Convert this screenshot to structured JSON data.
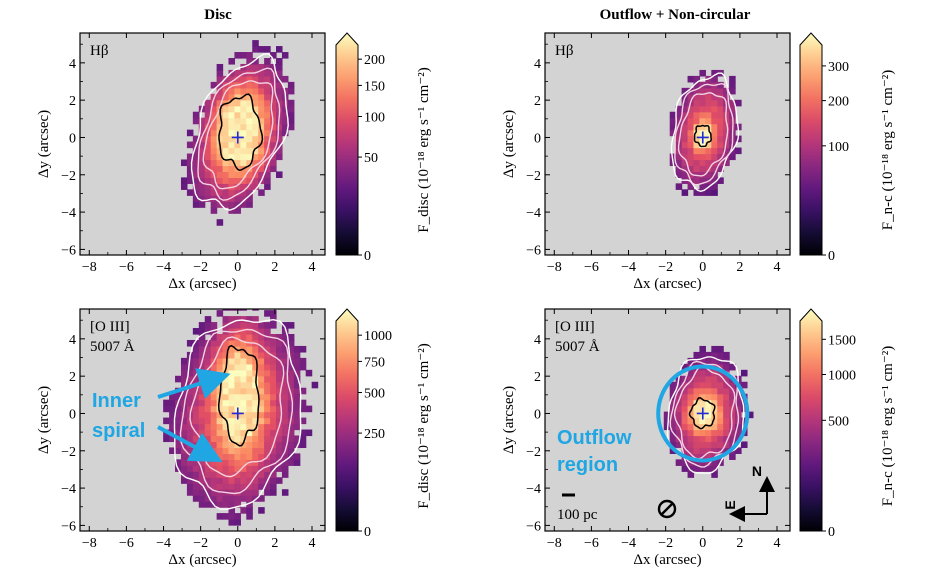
{
  "columns": [
    "Disc",
    "Outflow + Non-circular"
  ],
  "chart_data": [
    {
      "type": "heatmap",
      "id": "disc-hbeta",
      "column_title": "Disc",
      "panel_label": "Hβ",
      "xlabel": "Δx (arcsec)",
      "ylabel": "Δy (arcsec)",
      "xlim": [
        -8.5,
        4.7
      ],
      "ylim": [
        -6.3,
        5.6
      ],
      "xticks": [
        -8,
        -6,
        -4,
        -2,
        0,
        2,
        4
      ],
      "yticks": [
        -6,
        -4,
        -2,
        0,
        2,
        4
      ],
      "colorbar": {
        "label": "F_disc (10⁻¹⁸ erg s⁻¹ cm⁻²)",
        "ticks": [
          0,
          50,
          100,
          150,
          200
        ],
        "vmax": 230,
        "stretch": "sqrt"
      },
      "blob": {
        "cx": 0.1,
        "cy": 0.2,
        "rx": 2.6,
        "ry": 4.8,
        "tilt_deg": -20,
        "peak_x": 0.1,
        "peak_y": 0.3,
        "core_rx": 1.4,
        "core_ry": 2.4,
        "peak_frac": 0.98
      },
      "contours_white": [
        0.2,
        0.38,
        0.55
      ],
      "contours_black": [
        0.82
      ],
      "center_marker": [
        0,
        0
      ]
    },
    {
      "type": "heatmap",
      "id": "nc-hbeta",
      "column_title": "Outflow + Non-circular",
      "panel_label": "Hβ",
      "xlabel": "Δx (arcsec)",
      "ylabel": "Δy (arcsec)",
      "xlim": [
        -8.5,
        4.7
      ],
      "ylim": [
        -6.3,
        5.6
      ],
      "xticks": [
        -8,
        -6,
        -4,
        -2,
        0,
        2,
        4
      ],
      "yticks": [
        -6,
        -4,
        -2,
        0,
        2,
        4
      ],
      "colorbar": {
        "label": "F_n-c (10⁻¹⁸ erg s⁻¹ cm⁻²)",
        "ticks": [
          0,
          100,
          200,
          300
        ],
        "vmax": 370,
        "stretch": "sqrt"
      },
      "blob": {
        "cx": 0.1,
        "cy": 0.3,
        "rx": 1.9,
        "ry": 3.4,
        "tilt_deg": -10,
        "peak_x": 0.0,
        "peak_y": 0.1,
        "core_rx": 0.55,
        "core_ry": 0.7,
        "peak_frac": 0.96
      },
      "contours_white": [
        0.15,
        0.3,
        0.5
      ],
      "contours_black": [
        0.82
      ],
      "center_marker": [
        0,
        0
      ]
    },
    {
      "type": "heatmap",
      "id": "disc-oiii",
      "column_title": "Disc",
      "panel_label": "[O III]",
      "panel_label_line2": "5007 Å",
      "xlabel": "Δx (arcsec)",
      "ylabel": "Δy (arcsec)",
      "xlim": [
        -8.5,
        4.7
      ],
      "ylim": [
        -6.3,
        5.6
      ],
      "xticks": [
        -8,
        -6,
        -4,
        -2,
        0,
        2,
        4
      ],
      "yticks": [
        -6,
        -4,
        -2,
        0,
        2,
        4
      ],
      "colorbar": {
        "label": "F_disc (10⁻¹⁸ erg s⁻¹ cm⁻²)",
        "ticks": [
          0,
          250,
          500,
          750,
          1000
        ],
        "vmax": 1150,
        "stretch": "sqrt"
      },
      "blob": {
        "cx": 0.0,
        "cy": 0.0,
        "rx": 3.8,
        "ry": 5.8,
        "tilt_deg": -10,
        "peak_x": 0.1,
        "peak_y": 1.0,
        "core_rx": 1.3,
        "core_ry": 3.2,
        "peak_frac": 0.98
      },
      "contours_white": [
        0.18,
        0.35,
        0.55
      ],
      "contours_black": [
        0.82
      ],
      "center_marker": [
        0,
        0
      ],
      "annotation": {
        "text_line1": "Inner",
        "text_line2": "spiral",
        "arrow_targets": [
          [
            -0.8,
            2.0
          ],
          [
            -1.2,
            -2.4
          ]
        ]
      }
    },
    {
      "type": "heatmap",
      "id": "nc-oiii",
      "column_title": "Outflow + Non-circular",
      "panel_label": "[O III]",
      "panel_label_line2": "5007 Å",
      "xlabel": "Δx (arcsec)",
      "ylabel": "Δy (arcsec)",
      "xlim": [
        -8.5,
        4.7
      ],
      "ylim": [
        -6.3,
        5.6
      ],
      "xticks": [
        -8,
        -6,
        -4,
        -2,
        0,
        2,
        4
      ],
      "yticks": [
        -6,
        -4,
        -2,
        0,
        2,
        4
      ],
      "colorbar": {
        "label": "F_n-c (10⁻¹⁸ erg s⁻¹ cm⁻²)",
        "ticks": [
          0,
          500,
          1000,
          1500
        ],
        "vmax": 1800,
        "stretch": "sqrt"
      },
      "blob": {
        "cx": 0.2,
        "cy": 0.0,
        "rx": 2.2,
        "ry": 3.4,
        "tilt_deg": -5,
        "peak_x": 0.0,
        "peak_y": 0.0,
        "core_rx": 0.8,
        "core_ry": 0.95,
        "peak_frac": 0.98
      },
      "contours_white": [
        0.12,
        0.28,
        0.45
      ],
      "contours_black": [
        0.85
      ],
      "center_marker": [
        0,
        0
      ],
      "annotation": {
        "text_line1": "Outflow",
        "text_line2": "region",
        "circle_center": [
          0.0,
          0.0
        ],
        "circle_radius": 2.4
      },
      "scalebar_label": "100 pc",
      "compass": {
        "north": "N",
        "east": "E"
      }
    }
  ]
}
